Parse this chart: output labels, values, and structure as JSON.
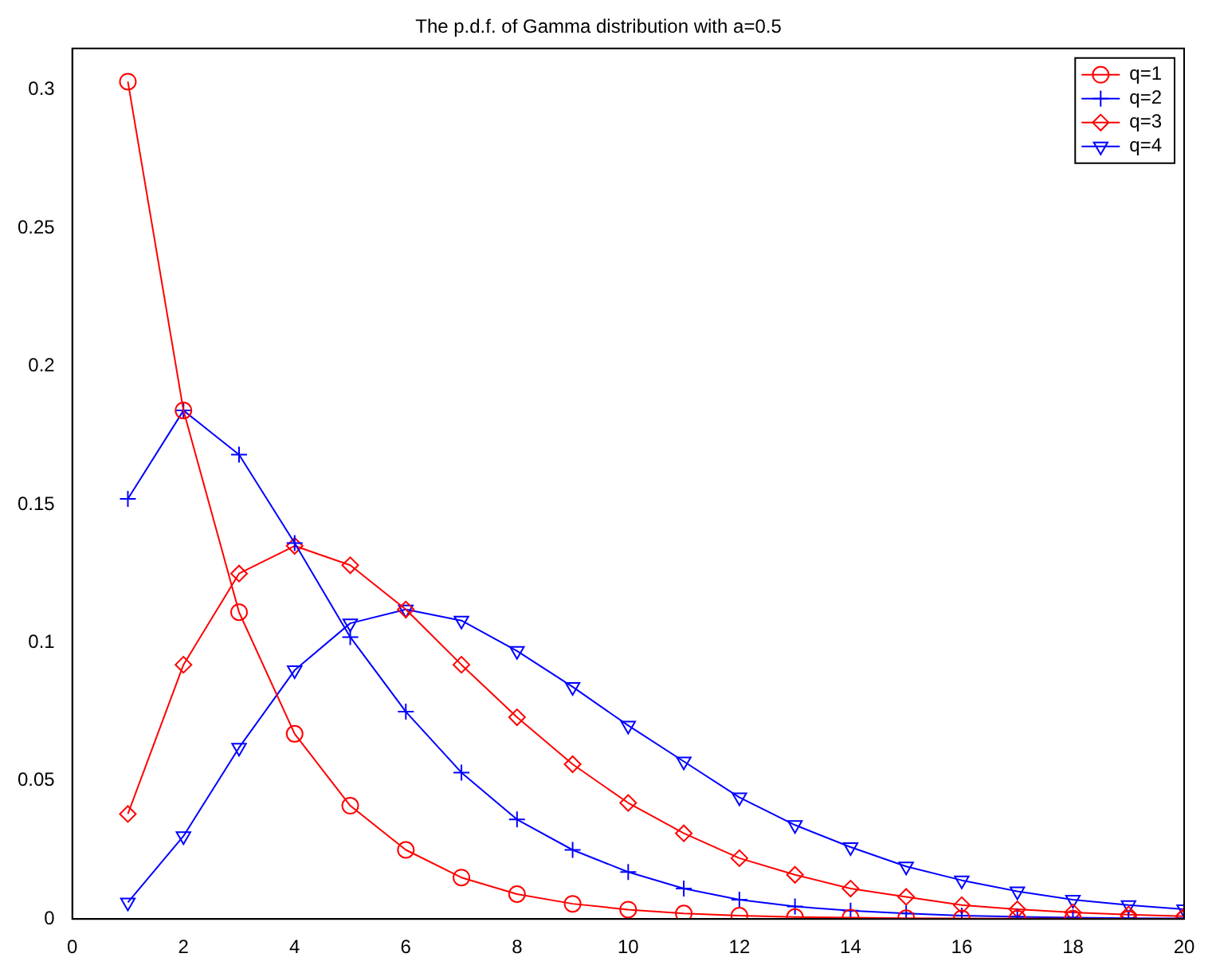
{
  "chart_data": {
    "type": "line",
    "title": "The p.d.f. of Gamma distribution with a=0.5",
    "x": [
      1,
      2,
      3,
      4,
      5,
      6,
      7,
      8,
      9,
      10,
      11,
      12,
      13,
      14,
      15,
      16,
      17,
      18,
      19,
      20
    ],
    "series": [
      {
        "name": "q=1",
        "color": "#ff0000",
        "marker": "circle",
        "values": [
          0.303,
          0.184,
          0.111,
          0.067,
          0.041,
          0.025,
          0.015,
          0.009,
          0.0055,
          0.0034,
          0.002,
          0.0012,
          0.0007,
          0.0005,
          0.0003,
          0.0002,
          0.0001,
          0.0001,
          0,
          0
        ]
      },
      {
        "name": "q=2",
        "color": "#0000ff",
        "marker": "cross",
        "values": [
          0.152,
          0.184,
          0.168,
          0.136,
          0.102,
          0.075,
          0.053,
          0.036,
          0.025,
          0.017,
          0.011,
          0.007,
          0.0045,
          0.003,
          0.002,
          0.0012,
          0.0008,
          0.0005,
          0.0003,
          0.0002
        ]
      },
      {
        "name": "q=3",
        "color": "#ff0000",
        "marker": "diamond",
        "values": [
          0.038,
          0.092,
          0.125,
          0.135,
          0.128,
          0.112,
          0.092,
          0.073,
          0.056,
          0.042,
          0.031,
          0.022,
          0.016,
          0.011,
          0.008,
          0.005,
          0.0035,
          0.0024,
          0.0016,
          0.001
        ]
      },
      {
        "name": "q=4",
        "color": "#0000ff",
        "marker": "triangle",
        "values": [
          0.006,
          0.03,
          0.062,
          0.09,
          0.107,
          0.112,
          0.108,
          0.097,
          0.084,
          0.07,
          0.057,
          0.044,
          0.034,
          0.026,
          0.019,
          0.014,
          0.01,
          0.007,
          0.005,
          0.0035
        ]
      }
    ],
    "xlim": [
      0,
      20
    ],
    "xticks": [
      0,
      2,
      4,
      6,
      8,
      10,
      12,
      14,
      16,
      18,
      20
    ],
    "ylim": [
      0,
      0.315
    ],
    "yticks": [
      0,
      0.05,
      0.1,
      0.15,
      0.2,
      0.25,
      0.3
    ],
    "grid": false,
    "legend": "top right",
    "line_style": "solid"
  }
}
